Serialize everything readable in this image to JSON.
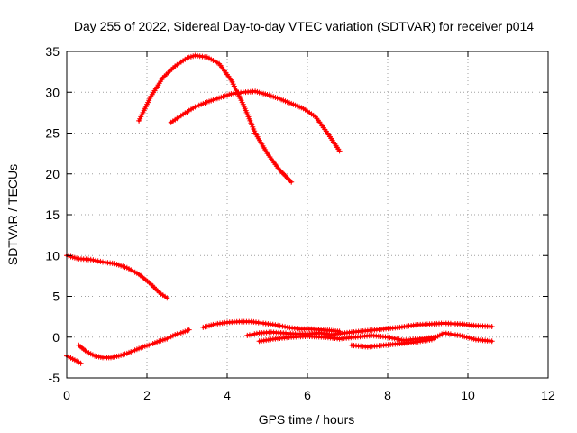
{
  "chart_data": {
    "type": "scatter",
    "title": "Day 255 of 2022, Sidereal Day-to-day VTEC variation (SDTVAR) for receiver p014",
    "xlabel": "GPS time / hours",
    "ylabel": "SDTVAR / TECUs",
    "xlim": [
      0,
      12
    ],
    "ylim": [
      -5,
      35
    ],
    "xticks": [
      "0",
      "2",
      "4",
      "6",
      "8",
      "10",
      "12"
    ],
    "yticks": [
      "-5",
      "0",
      "5",
      "10",
      "15",
      "20",
      "25",
      "30",
      "35"
    ],
    "grid": true,
    "legend": "none",
    "color": "#ff0000",
    "series": [
      {
        "x": [
          0.0,
          0.3,
          0.6,
          0.9,
          1.2,
          1.5,
          1.8,
          2.1,
          2.3,
          2.5
        ],
        "y": [
          10.0,
          9.6,
          9.5,
          9.2,
          9.0,
          8.5,
          7.7,
          6.5,
          5.5,
          4.8
        ]
      },
      {
        "x": [
          1.8,
          2.1,
          2.4,
          2.7,
          3.0,
          3.2,
          3.5,
          3.8,
          4.1,
          4.4,
          4.7,
          5.0,
          5.3,
          5.6
        ],
        "y": [
          26.5,
          29.5,
          31.8,
          33.2,
          34.2,
          34.5,
          34.3,
          33.5,
          31.5,
          28.5,
          25.0,
          22.5,
          20.5,
          19.0
        ]
      },
      {
        "x": [
          2.6,
          2.9,
          3.2,
          3.5,
          3.8,
          4.1,
          4.4,
          4.7,
          5.0,
          5.3,
          5.6,
          5.9,
          6.2,
          6.5,
          6.8
        ],
        "y": [
          26.3,
          27.3,
          28.2,
          28.8,
          29.3,
          29.8,
          30.0,
          30.1,
          29.7,
          29.2,
          28.6,
          28.0,
          27.0,
          25.0,
          22.8
        ]
      },
      {
        "x": [
          0.0,
          0.2,
          0.35
        ],
        "y": [
          -2.3,
          -2.8,
          -3.2
        ]
      },
      {
        "x": [
          0.3,
          0.5,
          0.7,
          0.9,
          1.1,
          1.3,
          1.5,
          1.7,
          1.9,
          2.1,
          2.3,
          2.5,
          2.7,
          2.9,
          3.05
        ],
        "y": [
          -1.0,
          -1.8,
          -2.3,
          -2.5,
          -2.5,
          -2.3,
          -2.0,
          -1.6,
          -1.2,
          -0.9,
          -0.5,
          -0.2,
          0.3,
          0.6,
          0.9
        ]
      },
      {
        "x": [
          3.4,
          3.7,
          4.0,
          4.3,
          4.6,
          4.9,
          5.2,
          5.5,
          5.8,
          6.1,
          6.4,
          6.6,
          6.8
        ],
        "y": [
          1.2,
          1.6,
          1.8,
          1.9,
          1.9,
          1.7,
          1.5,
          1.2,
          1.0,
          1.0,
          0.9,
          0.8,
          0.7
        ]
      },
      {
        "x": [
          4.5,
          4.8,
          5.1,
          5.4,
          5.7,
          6.0,
          6.3,
          6.6,
          7.1,
          7.5,
          7.9,
          8.3,
          8.7,
          9.1,
          9.4,
          9.8,
          10.2,
          10.6
        ],
        "y": [
          0.2,
          0.5,
          0.6,
          0.5,
          0.4,
          0.4,
          0.5,
          0.3,
          0.6,
          0.8,
          1.0,
          1.2,
          1.5,
          1.6,
          1.7,
          1.6,
          1.4,
          1.3
        ]
      },
      {
        "x": [
          7.1,
          7.5,
          7.9,
          8.3,
          8.7,
          9.1,
          9.4,
          9.8,
          10.2,
          10.6
        ],
        "y": [
          -1.0,
          -1.2,
          -1.0,
          -0.8,
          -0.6,
          -0.3,
          0.5,
          0.2,
          -0.3,
          -0.5
        ]
      },
      {
        "x": [
          4.8,
          5.2,
          5.6,
          6.0,
          6.4,
          6.8,
          7.2,
          7.6,
          8.0,
          8.4,
          8.8,
          9.2
        ],
        "y": [
          -0.5,
          -0.2,
          0.0,
          0.1,
          0.0,
          -0.2,
          0.0,
          0.2,
          0.0,
          -0.4,
          -0.2,
          0.0
        ]
      }
    ]
  }
}
